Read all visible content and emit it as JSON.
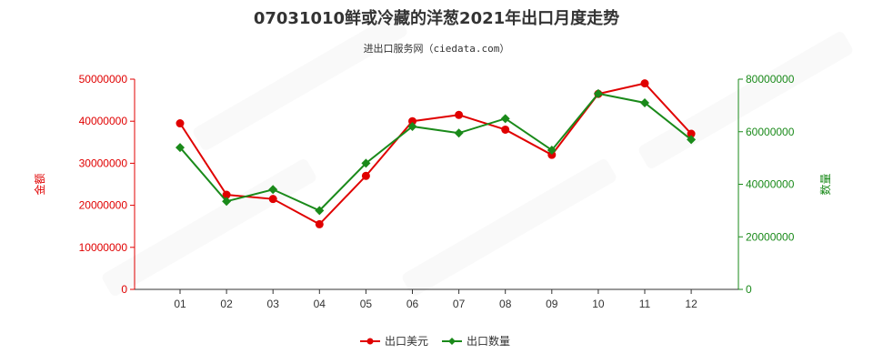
{
  "chart_data": {
    "type": "line",
    "title": "07031010鲜或冷藏的洋葱2021年出口月度走势",
    "subtitle": "进出口服务网（ciedata.com）",
    "categories": [
      "01",
      "02",
      "03",
      "04",
      "05",
      "06",
      "07",
      "08",
      "09",
      "10",
      "11",
      "12"
    ],
    "y_left": {
      "label": "金额",
      "range": [
        0,
        50000000
      ],
      "ticks": [
        "0",
        "10000000",
        "20000000",
        "30000000",
        "40000000",
        "50000000"
      ],
      "color": "#e00000"
    },
    "y_right": {
      "label": "数量",
      "range": [
        0,
        80000000
      ],
      "ticks": [
        "0",
        "20000000",
        "40000000",
        "60000000",
        "80000000"
      ],
      "color": "#1a8a1a"
    },
    "series": [
      {
        "name": "出口美元",
        "axis": "left",
        "color": "#e00000",
        "marker": "circle",
        "values": [
          39500000,
          22500000,
          21500000,
          15500000,
          27000000,
          40000000,
          41500000,
          38000000,
          32000000,
          46500000,
          49000000,
          37000000
        ]
      },
      {
        "name": "出口数量",
        "axis": "right",
        "color": "#1a8a1a",
        "marker": "diamond",
        "values": [
          54000000,
          33500000,
          38000000,
          30000000,
          48000000,
          62000000,
          59500000,
          65000000,
          53000000,
          74500000,
          71000000,
          57000000
        ]
      }
    ],
    "grid": false,
    "legend_position": "bottom-center"
  }
}
